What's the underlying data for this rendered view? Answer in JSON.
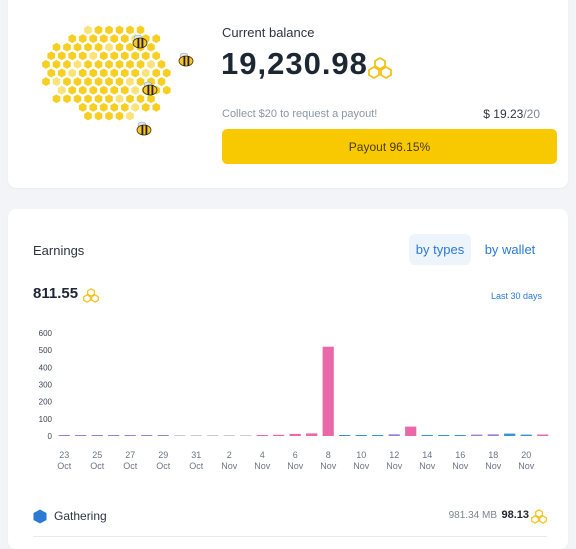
{
  "balance": {
    "label": "Current balance",
    "value": "19,230.98",
    "collect_note": "Collect $20 to request a payout!",
    "payout_current": "$ 19.23",
    "payout_target": "/20",
    "payout_button_label": "Payout 96.15%",
    "payout_progress_percent": 96.15,
    "coin_icon": "honeycomb-coin-icon"
  },
  "earnings": {
    "title": "Earnings",
    "tabs": [
      {
        "label": "by types",
        "active": true
      },
      {
        "label": "by wallet",
        "active": false
      }
    ],
    "total": "811.55",
    "period": "Last 30 days"
  },
  "chart_data": {
    "type": "bar",
    "title": "",
    "xlabel": "",
    "ylabel": "",
    "ylim": [
      0,
      600
    ],
    "yticks": [
      0,
      100,
      200,
      300,
      400,
      500,
      600
    ],
    "xtick_labels": [
      {
        "day": "23",
        "month": "Oct"
      },
      {
        "day": "25",
        "month": "Oct"
      },
      {
        "day": "27",
        "month": "Oct"
      },
      {
        "day": "29",
        "month": "Oct"
      },
      {
        "day": "31",
        "month": "Oct"
      },
      {
        "day": "2",
        "month": "Nov"
      },
      {
        "day": "4",
        "month": "Nov"
      },
      {
        "day": "6",
        "month": "Nov"
      },
      {
        "day": "8",
        "month": "Nov"
      },
      {
        "day": "10",
        "month": "Nov"
      },
      {
        "day": "12",
        "month": "Nov"
      },
      {
        "day": "14",
        "month": "Nov"
      },
      {
        "day": "16",
        "month": "Nov"
      },
      {
        "day": "18",
        "month": "Nov"
      },
      {
        "day": "20",
        "month": "Nov"
      }
    ],
    "bars": [
      {
        "value": 5,
        "color": "#9b7fd6"
      },
      {
        "value": 4,
        "color": "#9b7fd6"
      },
      {
        "value": 5,
        "color": "#9b7fd6"
      },
      {
        "value": 6,
        "color": "#9b7fd6"
      },
      {
        "value": 2,
        "color": "#9b7fd6"
      },
      {
        "value": 5,
        "color": "#9b7fd6"
      },
      {
        "value": 6,
        "color": "#9b7fd6"
      },
      {
        "value": 2,
        "color": "#cccccc"
      },
      {
        "value": 2,
        "color": "#cccccc"
      },
      {
        "value": 2,
        "color": "#cccccc"
      },
      {
        "value": 3,
        "color": "#cccccc"
      },
      {
        "value": 2,
        "color": "#cccccc"
      },
      {
        "value": 6,
        "color": "#e968a8"
      },
      {
        "value": 7,
        "color": "#e968a8"
      },
      {
        "value": 12,
        "color": "#e968a8"
      },
      {
        "value": 15,
        "color": "#e968a8"
      },
      {
        "value": 520,
        "color": "#e968a8"
      },
      {
        "value": 6,
        "color": "#3b90dd"
      },
      {
        "value": 4,
        "color": "#3b90dd"
      },
      {
        "value": 5,
        "color": "#3b90dd"
      },
      {
        "value": 10,
        "color": "#9b7fd6"
      },
      {
        "value": 55,
        "color": "#e968a8"
      },
      {
        "value": 6,
        "color": "#3b90dd"
      },
      {
        "value": 4,
        "color": "#3b90dd"
      },
      {
        "value": 5,
        "color": "#3b90dd"
      },
      {
        "value": 8,
        "color": "#9b7fd6"
      },
      {
        "value": 10,
        "color": "#9b7fd6"
      },
      {
        "value": 14,
        "color": "#3b90dd"
      },
      {
        "value": 8,
        "color": "#3b90dd"
      },
      {
        "value": 9,
        "color": "#e968a8"
      }
    ]
  },
  "gathering": {
    "label": "Gathering",
    "size": "981.34 MB",
    "amount": "98.13",
    "icon": "blue-hexagon-icon",
    "color": "#2a7ad6"
  },
  "colors": {
    "accent_yellow": "#f9c900",
    "link_blue": "#2a7ad6",
    "coin_yellow": "#f4c21a"
  }
}
